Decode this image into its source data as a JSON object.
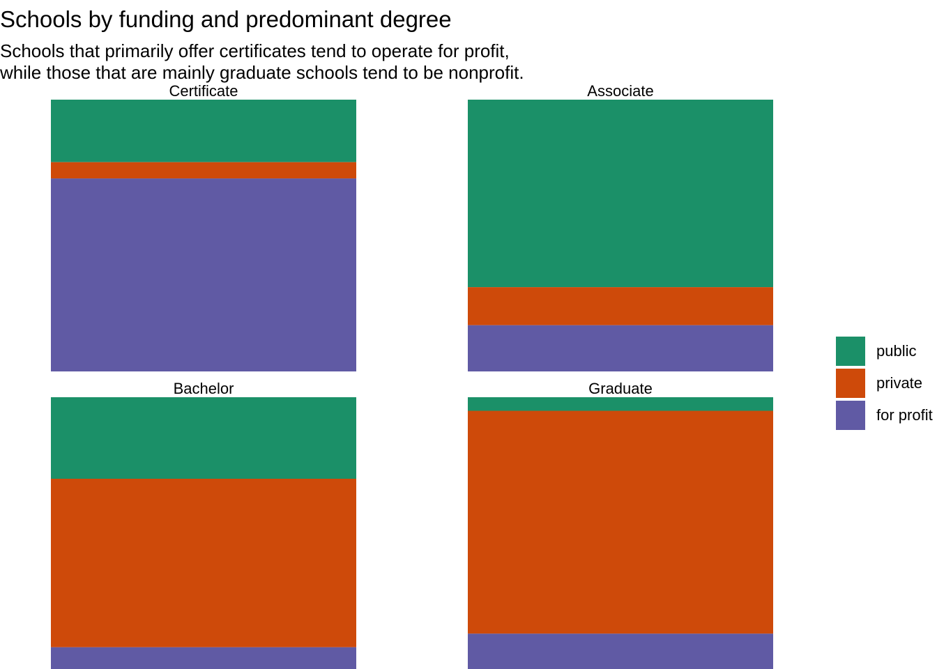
{
  "title": "Schools by funding and predominant degree",
  "subtitle": [
    "Schools that primarily offer certificates tend to operate for profit,",
    "while those that are mainly graduate schools tend to be nonprofit."
  ],
  "colors": {
    "public": "#1b9e77",
    "private": "#d95f02",
    "for profit": "#7570b3"
  },
  "legend": {
    "items": [
      {
        "label": "public",
        "color": "#1B9068"
      },
      {
        "label": "private",
        "color": "#CE4A0A"
      },
      {
        "label": "for profit",
        "color": "#605AA4"
      }
    ]
  },
  "chart_data": {
    "type": "bar",
    "stacked": true,
    "normalized": true,
    "facets": [
      "Certificate",
      "Associate",
      "Bachelor",
      "Graduate"
    ],
    "series": [
      {
        "name": "public",
        "color": "#1B9068",
        "values": [
          0.23,
          0.69,
          0.3,
          0.05
        ]
      },
      {
        "name": "private",
        "color": "#CE4A0A",
        "values": [
          0.06,
          0.14,
          0.62,
          0.82
        ]
      },
      {
        "name": "for profit",
        "color": "#605AA4",
        "values": [
          0.71,
          0.17,
          0.08,
          0.13
        ]
      }
    ],
    "ylim": [
      0,
      1
    ],
    "legend_position": "right",
    "grid": false
  }
}
